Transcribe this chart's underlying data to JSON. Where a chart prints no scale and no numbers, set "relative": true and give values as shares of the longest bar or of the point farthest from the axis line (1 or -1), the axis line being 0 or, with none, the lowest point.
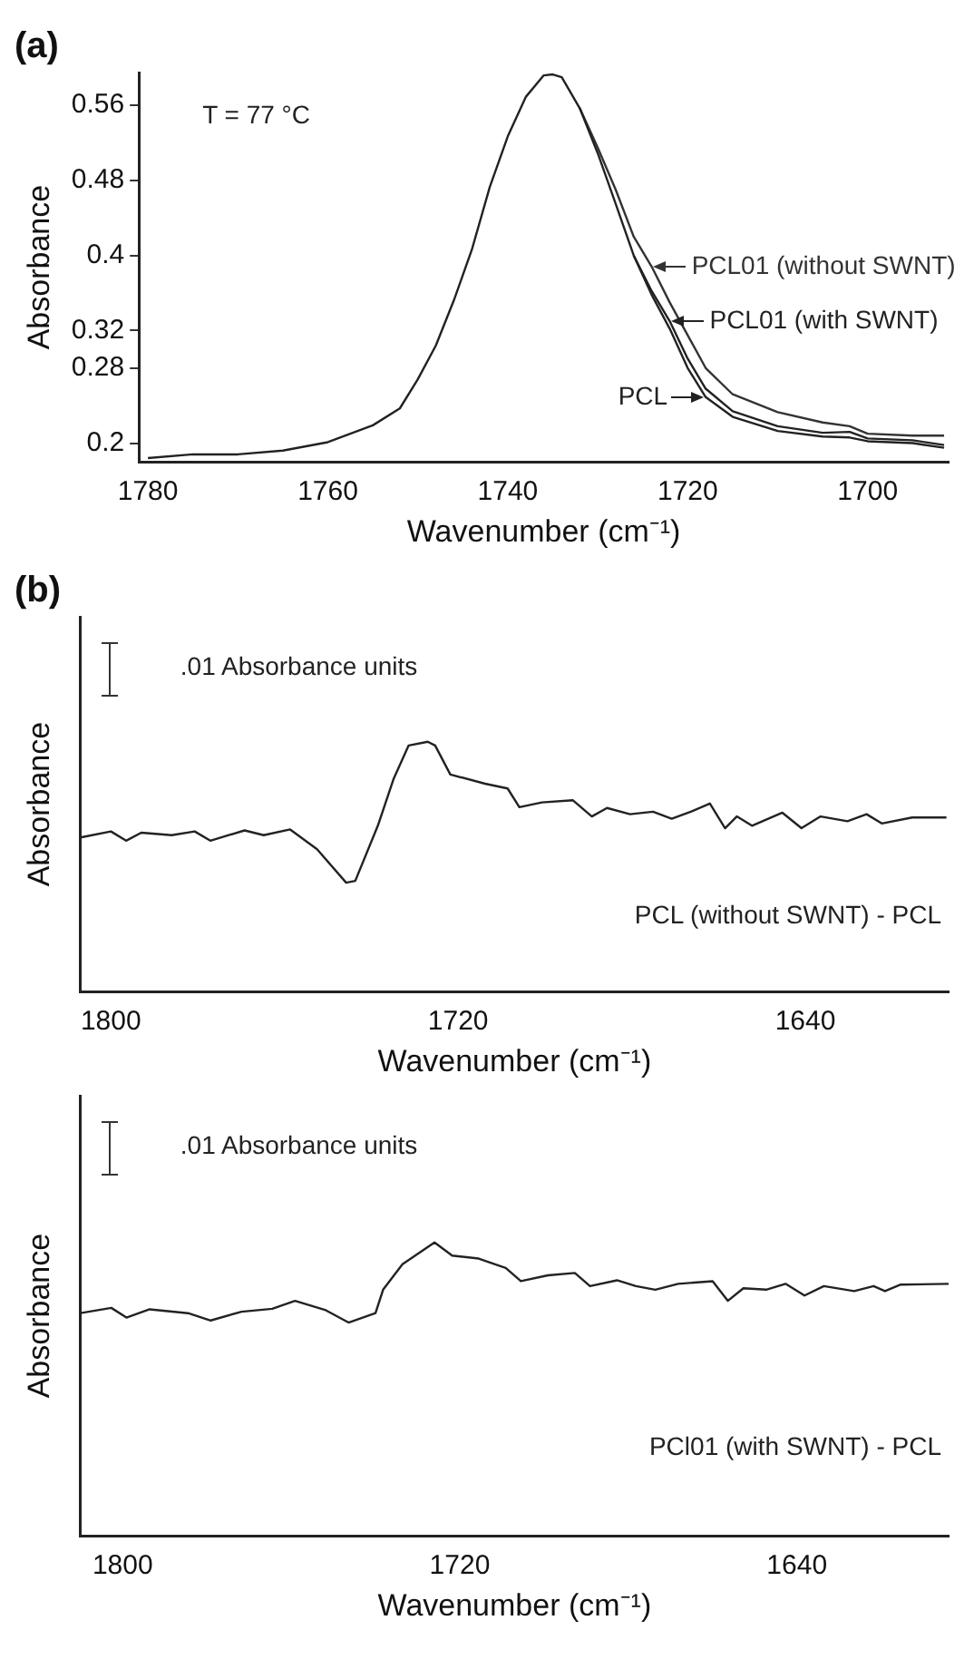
{
  "chart_data": [
    {
      "type": "line",
      "title": "(a)",
      "xlabel": "Wavenumber (cm⁻¹)",
      "ylabel": "Absorbance",
      "xlim": [
        1781,
        1691
      ],
      "xticks": [
        1780,
        1760,
        1740,
        1720,
        1700
      ],
      "ylim": [
        0.18,
        0.595
      ],
      "yticks": [
        0.2,
        0.28,
        0.32,
        0.4,
        0.48,
        0.56
      ],
      "grid": false,
      "marker": "none",
      "line_style": "solid",
      "x": [
        1780,
        1775,
        1770,
        1765,
        1760,
        1755,
        1752,
        1750,
        1748,
        1746,
        1744,
        1742,
        1740,
        1738,
        1736,
        1735,
        1734,
        1732,
        1730,
        1728,
        1726,
        1724,
        1722,
        1720,
        1718,
        1715,
        1710,
        1705,
        1702,
        1700,
        1695,
        1691.5
      ],
      "series": [
        {
          "name": "PCL",
          "color": "#222222",
          "values": [
            0.184,
            0.188,
            0.188,
            0.192,
            0.201,
            0.219,
            0.237,
            0.268,
            0.304,
            0.352,
            0.406,
            0.473,
            0.527,
            0.569,
            0.592,
            0.593,
            0.59,
            0.557,
            0.509,
            0.455,
            0.4,
            0.358,
            0.322,
            0.28,
            0.249,
            0.228,
            0.213,
            0.207,
            0.206,
            0.202,
            0.2,
            0.195
          ]
        },
        {
          "name": "PCL01 (with SWNT)",
          "color": "#222222",
          "values": [
            null,
            null,
            null,
            null,
            null,
            null,
            null,
            null,
            null,
            null,
            null,
            null,
            null,
            null,
            null,
            null,
            null,
            null,
            null,
            null,
            0.4,
            0.362,
            0.33,
            0.29,
            0.258,
            0.234,
            0.218,
            0.211,
            0.212,
            0.205,
            0.203,
            0.198
          ]
        },
        {
          "name": "PCL01 (without SWNT)",
          "color": "#333333",
          "values": [
            null,
            null,
            null,
            null,
            null,
            null,
            null,
            null,
            null,
            null,
            null,
            null,
            null,
            null,
            null,
            null,
            null,
            0.557,
            0.515,
            0.47,
            0.42,
            0.388,
            0.35,
            0.315,
            0.28,
            0.252,
            0.233,
            0.222,
            0.218,
            0.21,
            0.208,
            0.208
          ]
        }
      ],
      "legend": "right",
      "annotations": [
        "T = 77 °C"
      ]
    },
    {
      "type": "line",
      "title": "(b)",
      "xlabel": "Wavenumber (cm⁻¹)",
      "ylabel": "Absorbance",
      "relative": true,
      "xlim": [
        1807,
        1607
      ],
      "xticks": [
        1800,
        1720,
        1640
      ],
      "grid": false,
      "marker": "none",
      "line_style": "solid",
      "x": [
        1807,
        1800,
        1796.5,
        1793,
        1786,
        1780.7,
        1777.1,
        1769.2,
        1764.8,
        1758.7,
        1752.5,
        1745.8,
        1743.7,
        1738.5,
        1734.9,
        1731.4,
        1727,
        1725.3,
        1721.8,
        1713.8,
        1708.6,
        1705.9,
        1700.7,
        1693.6,
        1689.2,
        1685.7,
        1680.4,
        1675.1,
        1670.8,
        1666.4,
        1662,
        1658.5,
        1655.8,
        1652.3,
        1645.3,
        1640.9,
        1636.5,
        1630.3,
        1625.9,
        1622.4,
        1615.4,
        1607.5
      ],
      "series": [
        {
          "color": "#222222",
          "values": [
            0.617,
            0.641,
            0.604,
            0.636,
            0.626,
            0.641,
            0.604,
            0.645,
            0.626,
            0.649,
            0.57,
            0.436,
            0.443,
            0.664,
            0.85,
            0.985,
            1,
            0.985,
            0.869,
            0.832,
            0.813,
            0.738,
            0.757,
            0.766,
            0.701,
            0.735,
            0.71,
            0.72,
            0.692,
            0.72,
            0.753,
            0.654,
            0.701,
            0.664,
            0.716,
            0.654,
            0.701,
            0.682,
            0.71,
            0.673,
            0.697,
            0.697
          ]
        }
      ],
      "annotations": [
        ".01 Absorbance units",
        "PCL (without SWNT) - PCL"
      ]
    },
    {
      "type": "line",
      "xlabel": "Wavenumber (cm⁻¹)",
      "ylabel": "Absorbance",
      "relative": true,
      "xlim": [
        1810,
        1604
      ],
      "xticks": [
        1800,
        1720,
        1640
      ],
      "grid": false,
      "marker": "none",
      "line_style": "solid",
      "x": [
        1810,
        1802.7,
        1799.1,
        1793.6,
        1784.5,
        1779.1,
        1771.8,
        1764.5,
        1759.1,
        1751.8,
        1746.4,
        1740,
        1738.2,
        1733.6,
        1726,
        1721.8,
        1715.5,
        1709.1,
        1705.5,
        1699.1,
        1692.7,
        1689.1,
        1682.7,
        1678.2,
        1673.6,
        1668.2,
        1660,
        1656.4,
        1652.7,
        1647.3,
        1642.7,
        1638.2,
        1633.6,
        1626.4,
        1621.8,
        1619.1,
        1615.5,
        1604
      ],
      "series": [
        {
          "color": "#222222",
          "values": [
            0.759,
            0.777,
            0.744,
            0.772,
            0.759,
            0.734,
            0.764,
            0.774,
            0.801,
            0.769,
            0.727,
            0.759,
            0.839,
            0.926,
            1,
            0.955,
            0.945,
            0.913,
            0.868,
            0.888,
            0.896,
            0.851,
            0.871,
            0.851,
            0.839,
            0.859,
            0.868,
            0.801,
            0.844,
            0.839,
            0.859,
            0.819,
            0.851,
            0.834,
            0.851,
            0.834,
            0.856,
            0.859
          ]
        }
      ],
      "annotations": [
        ".01 Absorbance units",
        "PCl01 (with SWNT) - PCL"
      ]
    }
  ]
}
